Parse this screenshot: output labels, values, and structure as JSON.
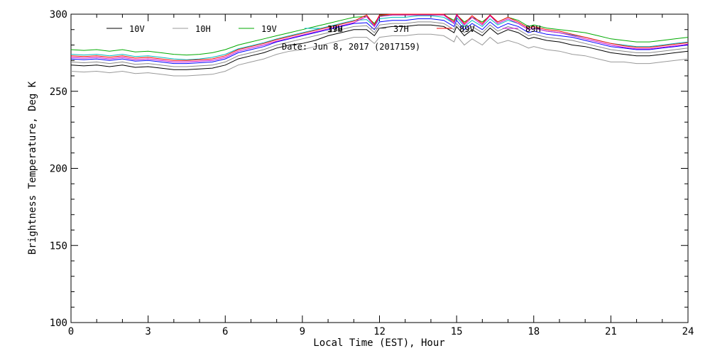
{
  "chart_data": {
    "type": "line",
    "title": "",
    "xlabel": "Local Time (EST), Hour",
    "ylabel": "Brightness Temperature, Deg K",
    "annotation": "Date: Jun  8, 2017 (2017159)",
    "xlim": [
      0,
      24
    ],
    "ylim": [
      100,
      300
    ],
    "x_ticks": [
      0,
      3,
      6,
      9,
      12,
      15,
      18,
      21,
      24
    ],
    "y_ticks": [
      100,
      150,
      200,
      250,
      300
    ],
    "grid": false,
    "legend_position": "top",
    "x": [
      0,
      0.5,
      1,
      1.5,
      2,
      2.5,
      3,
      3.5,
      4,
      4.5,
      5,
      5.5,
      6,
      6.5,
      7,
      7.5,
      8,
      8.5,
      9,
      9.5,
      10,
      10.5,
      11,
      11.5,
      11.8,
      12,
      12.5,
      13,
      13.5,
      14,
      14.5,
      14.9,
      15,
      15.3,
      15.6,
      16,
      16.3,
      16.6,
      17,
      17.4,
      17.8,
      18,
      18.5,
      19,
      19.5,
      20,
      20.5,
      21,
      21.5,
      22,
      22.5,
      23,
      23.5,
      24
    ],
    "series": [
      {
        "name": "10V",
        "color": "#000000",
        "values": [
          267,
          266.5,
          267,
          266,
          267,
          265.5,
          266,
          265,
          264,
          264,
          264.5,
          265,
          267,
          271,
          273,
          275,
          278,
          280,
          281,
          283,
          286,
          288,
          290,
          290,
          286,
          291,
          292,
          292,
          293,
          293,
          292,
          288,
          292,
          286,
          290,
          286,
          291,
          287,
          290,
          288,
          284,
          285,
          283,
          282,
          280,
          279,
          277,
          275,
          274,
          273,
          273,
          274,
          275,
          276
        ]
      },
      {
        "name": "10H",
        "color": "#999999",
        "values": [
          263,
          262.5,
          263,
          262,
          263,
          261.5,
          262,
          261,
          260,
          260,
          260.5,
          261,
          263,
          267,
          269,
          271,
          274,
          276,
          277,
          279,
          281,
          283,
          285,
          285,
          281,
          285,
          286,
          286,
          287,
          287,
          286,
          282,
          286,
          280,
          284,
          280,
          285,
          281,
          283,
          281,
          278,
          279,
          277,
          276,
          274,
          273,
          271,
          269,
          269,
          268,
          268,
          269,
          270,
          271
        ]
      },
      {
        "name": "19V",
        "color": "#00aa00",
        "values": [
          277,
          276.5,
          277,
          276,
          277,
          275.5,
          276,
          275,
          274,
          273.5,
          274,
          275,
          277,
          280,
          282,
          284,
          286,
          288,
          290,
          292,
          294,
          296,
          298,
          298.5,
          294,
          299,
          299.5,
          299.5,
          299.5,
          299.5,
          299.5,
          296,
          299.5,
          295,
          298,
          295,
          299,
          295,
          298,
          296,
          292,
          293,
          291,
          290,
          289,
          288,
          286,
          284,
          283,
          282,
          282,
          283,
          284,
          285
        ]
      },
      {
        "name": "19H",
        "color": "#0000ff",
        "values": [
          271,
          270.5,
          271,
          270,
          271,
          269.5,
          270,
          269,
          268,
          268,
          268.5,
          269,
          271,
          275,
          277,
          279,
          282,
          284,
          286,
          288,
          290,
          292,
          294,
          294.5,
          290,
          295,
          296,
          296,
          297,
          297,
          296,
          292,
          296,
          290,
          294,
          290,
          295,
          291,
          294,
          292,
          288,
          289,
          287,
          286,
          285,
          283,
          281,
          279,
          278,
          277,
          277,
          278,
          279,
          280
        ]
      },
      {
        "name": "37V",
        "color": "#00bbbb",
        "values": [
          274,
          273.5,
          274,
          273,
          274,
          272.5,
          273,
          272,
          271,
          270.5,
          271,
          272,
          274,
          277.5,
          279.5,
          281.5,
          284,
          286,
          288,
          290,
          292,
          294,
          296,
          296.5,
          292,
          297,
          298,
          298,
          299,
          299,
          298,
          294,
          298,
          292,
          296,
          292,
          297,
          293,
          296,
          294,
          290,
          291,
          289,
          288,
          286.5,
          285,
          283,
          281,
          280,
          279,
          279,
          280,
          281,
          282
        ]
      },
      {
        "name": "37H",
        "color": "#888888",
        "values": [
          269,
          268.5,
          269,
          268,
          269,
          267.5,
          268,
          267,
          266,
          266,
          266.5,
          267,
          269,
          273,
          275,
          277,
          280,
          282,
          284,
          286,
          288,
          290,
          292,
          292.5,
          288,
          293,
          294,
          294,
          295,
          295,
          294,
          290,
          294,
          288,
          292,
          288,
          293,
          289,
          292,
          290,
          286,
          287,
          285,
          284,
          283,
          281,
          279,
          277,
          276,
          275,
          275,
          276,
          277,
          278
        ]
      },
      {
        "name": "89V",
        "color": "#ff0000",
        "values": [
          273,
          272.5,
          273,
          272,
          273,
          271.5,
          272,
          271,
          270,
          270,
          270.5,
          271,
          273,
          277,
          279,
          281,
          283.5,
          285.5,
          287.5,
          289.5,
          291.5,
          293.5,
          295.5,
          299.5,
          293,
          299.5,
          300,
          300,
          300,
          300,
          300,
          295,
          300,
          294,
          299,
          294,
          299.5,
          295,
          298,
          295,
          291,
          292,
          290,
          289,
          287,
          285,
          283,
          281,
          279.5,
          278.5,
          278.5,
          279.5,
          280.5,
          281.5
        ]
      },
      {
        "name": "89H",
        "color": "#cc00cc",
        "values": [
          272,
          271.5,
          272,
          271,
          272,
          270.5,
          271,
          270,
          269,
          269,
          269.5,
          270,
          272,
          276,
          278,
          280,
          282.5,
          284.5,
          286.5,
          288.5,
          290.5,
          292.5,
          294.5,
          298.5,
          292,
          298.5,
          299.5,
          299.5,
          299.5,
          299.5,
          299.5,
          294,
          299.5,
          293,
          298,
          293,
          299,
          294,
          297,
          294,
          290,
          291,
          289,
          288,
          286,
          284,
          282,
          280,
          278.5,
          277.5,
          277.5,
          278.5,
          279.5,
          280.5
        ]
      }
    ]
  }
}
